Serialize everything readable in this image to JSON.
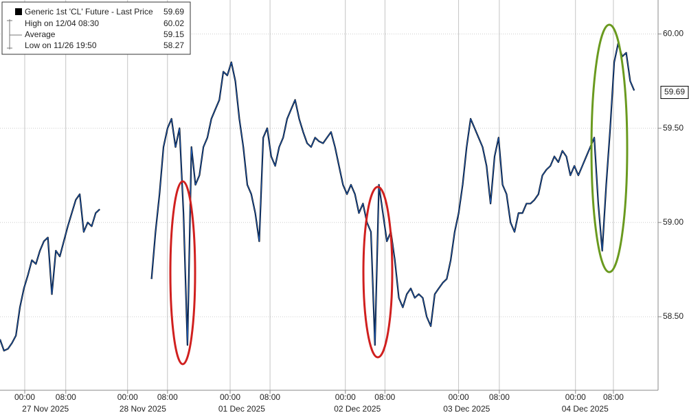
{
  "chart_data": {
    "type": "line",
    "legend": [
      {
        "name": "Generic 1st 'CL' Future - Last Price",
        "value": 59.69
      },
      {
        "name": "High on 12/04 08:30",
        "value": 60.02
      },
      {
        "name": "Average",
        "value": 59.15
      },
      {
        "name": "Low on 11/26 19:50",
        "value": 58.27
      }
    ],
    "last_price": 59.69,
    "xlim": [
      0,
      165
    ],
    "xticks": [
      {
        "value": 6.2,
        "label": "00:00"
      },
      {
        "value": 16.5,
        "label": "08:00"
      },
      {
        "value": 32,
        "label": "00:00"
      },
      {
        "value": 42,
        "label": "08:00"
      },
      {
        "value": 57.7,
        "label": "00:00"
      },
      {
        "value": 67.7,
        "label": "08:00"
      },
      {
        "value": 86.6,
        "label": "00:00"
      },
      {
        "value": 96.5,
        "label": "08:00"
      },
      {
        "value": 115,
        "label": "00:00"
      },
      {
        "value": 125.2,
        "label": "08:00"
      },
      {
        "value": 144.3,
        "label": "00:00"
      },
      {
        "value": 153.8,
        "label": "08:00"
      }
    ],
    "day_labels": [
      {
        "value": 11.4,
        "label": "27 Nov 2025"
      },
      {
        "value": 35.8,
        "label": "28 Nov 2025"
      },
      {
        "value": 60.6,
        "label": "01 Dec 2025"
      },
      {
        "value": 89.6,
        "label": "02 Dec 2025"
      },
      {
        "value": 117,
        "label": "03 Dec 2025"
      },
      {
        "value": 146.7,
        "label": "04 Dec 2025"
      }
    ],
    "ylim": [
      58.11,
      60.18
    ],
    "yticks": [
      {
        "value": 58.5,
        "label": "58.50"
      },
      {
        "value": 59,
        "label": "59.00"
      },
      {
        "value": 59.5,
        "label": "59.50"
      },
      {
        "value": 60,
        "label": "60.00"
      }
    ],
    "grid": true,
    "x": [
      0,
      1,
      2,
      3,
      4,
      5,
      6,
      7,
      8,
      9,
      10,
      11,
      12,
      13,
      14,
      15,
      16,
      17,
      18,
      19,
      20,
      21,
      22,
      23,
      24,
      25,
      26,
      27,
      28,
      29,
      30,
      31,
      32,
      33,
      34,
      35,
      36,
      37,
      38,
      39,
      40,
      41,
      42,
      43,
      44,
      45,
      46,
      47,
      48,
      49,
      50,
      51,
      52,
      53,
      54,
      55,
      56,
      57,
      58,
      59,
      60,
      61,
      62,
      63,
      64,
      65,
      66,
      67,
      68,
      69,
      70,
      71,
      72,
      73,
      74,
      75,
      76,
      77,
      78,
      79,
      80,
      81,
      82,
      83,
      84,
      85,
      86,
      87,
      88,
      89,
      90,
      91,
      92,
      93,
      94,
      95,
      96,
      97,
      98,
      99,
      100,
      101,
      102,
      103,
      104,
      105,
      106,
      107,
      108,
      109,
      110,
      111,
      112,
      113,
      114,
      115,
      116,
      117,
      118,
      119,
      120,
      121,
      122,
      123,
      124,
      125,
      126,
      127,
      128,
      129,
      130,
      131,
      132,
      133,
      134,
      135,
      136,
      137,
      138,
      139,
      140,
      141,
      142,
      143,
      144,
      145,
      146,
      147,
      148,
      149,
      150,
      151,
      152,
      153,
      154,
      155,
      156,
      157,
      158,
      159
    ],
    "series": [
      {
        "name": "Generic 1st 'CL' Future - Last Price",
        "color": "#1f5fbf",
        "values": [
          58.38,
          58.32,
          58.33,
          58.36,
          58.4,
          58.55,
          58.65,
          58.72,
          58.8,
          58.78,
          58.85,
          58.9,
          58.92,
          58.62,
          58.85,
          58.82,
          58.9,
          58.98,
          59.05,
          59.12,
          59.15,
          58.95,
          59.0,
          58.98,
          59.05,
          59.07,
          null,
          null,
          null,
          null,
          null,
          null,
          null,
          null,
          null,
          null,
          null,
          null,
          58.7,
          58.95,
          59.15,
          59.4,
          59.5,
          59.55,
          59.4,
          59.5,
          59.05,
          58.35,
          59.4,
          59.2,
          59.25,
          59.4,
          59.45,
          59.55,
          59.6,
          59.65,
          59.8,
          59.78,
          59.85,
          59.75,
          59.55,
          59.4,
          59.2,
          59.15,
          59.05,
          58.9,
          59.45,
          59.5,
          59.35,
          59.3,
          59.4,
          59.45,
          59.55,
          59.6,
          59.65,
          59.55,
          59.48,
          59.42,
          59.4,
          59.45,
          59.43,
          59.42,
          59.45,
          59.48,
          59.4,
          59.3,
          59.2,
          59.15,
          59.2,
          59.15,
          59.05,
          59.1,
          59.0,
          58.95,
          58.35,
          59.2,
          59.05,
          58.9,
          58.95,
          58.8,
          58.6,
          58.55,
          58.62,
          58.65,
          58.6,
          58.62,
          58.6,
          58.5,
          58.45,
          58.62,
          58.65,
          58.68,
          58.7,
          58.8,
          58.95,
          59.05,
          59.2,
          59.4,
          59.55,
          59.5,
          59.45,
          59.4,
          59.3,
          59.1,
          59.35,
          59.45,
          59.2,
          59.15,
          59.0,
          58.95,
          59.05,
          59.05,
          59.1,
          59.1,
          59.12,
          59.15,
          59.25,
          59.28,
          59.3,
          59.35,
          59.32,
          59.38,
          59.35,
          59.25,
          59.3,
          59.25,
          59.3,
          59.35,
          59.4,
          59.45,
          59.1,
          58.85,
          59.2,
          59.5,
          59.85,
          59.95,
          59.88,
          59.9,
          59.75,
          59.7
        ]
      }
    ]
  }
}
